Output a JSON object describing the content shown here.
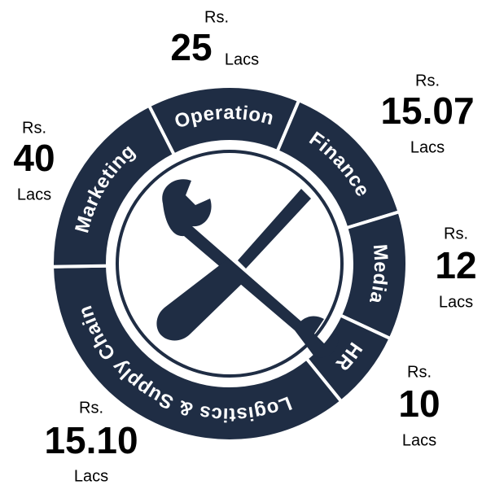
{
  "segments": [
    {
      "name": "Operation",
      "currency": "Rs.",
      "amount": "25",
      "unit": "Lacs"
    },
    {
      "name": "Finance",
      "currency": "Rs.",
      "amount": "15.07",
      "unit": "Lacs"
    },
    {
      "name": "Media",
      "currency": "Rs.",
      "amount": "12",
      "unit": "Lacs"
    },
    {
      "name": "HR",
      "currency": "Rs.",
      "amount": "10",
      "unit": "Lacs"
    },
    {
      "name": "Logistics & Supply Chain",
      "currency": "Rs.",
      "amount": "15.10",
      "unit": "Lacs"
    },
    {
      "name": "Marketing",
      "currency": "Rs.",
      "amount": "40",
      "unit": "Lacs"
    }
  ]
}
